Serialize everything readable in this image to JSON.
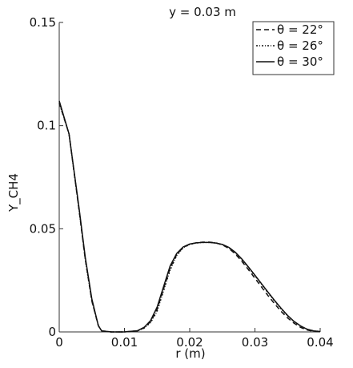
{
  "chart_data": {
    "type": "line",
    "title": "y = 0.03 m",
    "xlabel": "r (m)",
    "ylabel": "Y_CH4",
    "xlim": [
      0,
      0.04
    ],
    "ylim": [
      0,
      0.15
    ],
    "xticks": [
      "0",
      "0.01",
      "0.02",
      "0.03",
      "0.04"
    ],
    "yticks": [
      "0",
      "0.05",
      "0.1",
      "0.15"
    ],
    "grid": false,
    "legend_position": "top-right",
    "series": [
      {
        "name": "θ = 22°",
        "style": "dashed",
        "x": [
          0,
          0.0015,
          0.003,
          0.004,
          0.005,
          0.006,
          0.0065,
          0.008,
          0.01,
          0.012,
          0.013,
          0.014,
          0.015,
          0.016,
          0.017,
          0.018,
          0.019,
          0.02,
          0.021,
          0.022,
          0.023,
          0.024,
          0.025,
          0.026,
          0.027,
          0.028,
          0.029,
          0.03,
          0.031,
          0.032,
          0.033,
          0.034,
          0.035,
          0.036,
          0.037,
          0.038,
          0.039,
          0.04
        ],
        "y": [
          0.111,
          0.096,
          0.06,
          0.035,
          0.015,
          0.003,
          0.0005,
          0.0,
          0.0,
          0.0005,
          0.002,
          0.005,
          0.011,
          0.021,
          0.031,
          0.0375,
          0.041,
          0.0425,
          0.0432,
          0.0435,
          0.0435,
          0.0432,
          0.0422,
          0.0405,
          0.0378,
          0.0342,
          0.0302,
          0.026,
          0.0218,
          0.0176,
          0.0137,
          0.01,
          0.0068,
          0.0042,
          0.0022,
          0.0009,
          0.0003,
          0.0001
        ]
      },
      {
        "name": "θ = 26°",
        "style": "dash-dot",
        "x": [
          0,
          0.0015,
          0.003,
          0.004,
          0.005,
          0.006,
          0.0065,
          0.008,
          0.01,
          0.012,
          0.013,
          0.014,
          0.015,
          0.016,
          0.017,
          0.018,
          0.019,
          0.02,
          0.021,
          0.022,
          0.023,
          0.024,
          0.025,
          0.026,
          0.027,
          0.028,
          0.029,
          0.03,
          0.031,
          0.032,
          0.033,
          0.034,
          0.035,
          0.036,
          0.037,
          0.038,
          0.039,
          0.04
        ],
        "y": [
          0.111,
          0.096,
          0.06,
          0.035,
          0.015,
          0.003,
          0.0005,
          0.0,
          0.0,
          0.0005,
          0.0018,
          0.0045,
          0.01,
          0.02,
          0.03,
          0.037,
          0.0408,
          0.0424,
          0.0431,
          0.0434,
          0.0434,
          0.0431,
          0.0423,
          0.0408,
          0.0383,
          0.035,
          0.0312,
          0.0272,
          0.0231,
          0.019,
          0.015,
          0.0112,
          0.0078,
          0.005,
          0.0028,
          0.0013,
          0.0005,
          0.0002
        ]
      },
      {
        "name": "θ = 30°",
        "style": "solid",
        "x": [
          0,
          0.0015,
          0.003,
          0.004,
          0.005,
          0.006,
          0.0065,
          0.008,
          0.01,
          0.012,
          0.013,
          0.014,
          0.015,
          0.016,
          0.017,
          0.018,
          0.019,
          0.02,
          0.021,
          0.022,
          0.023,
          0.024,
          0.025,
          0.026,
          0.027,
          0.028,
          0.029,
          0.03,
          0.031,
          0.032,
          0.033,
          0.034,
          0.035,
          0.036,
          0.037,
          0.038,
          0.039,
          0.04
        ],
        "y": [
          0.112,
          0.096,
          0.061,
          0.036,
          0.016,
          0.003,
          0.0005,
          0.0,
          0.0,
          0.0006,
          0.0022,
          0.0055,
          0.012,
          0.022,
          0.032,
          0.038,
          0.0412,
          0.0426,
          0.0432,
          0.0434,
          0.0434,
          0.0431,
          0.0424,
          0.041,
          0.0386,
          0.0353,
          0.0315,
          0.0275,
          0.0234,
          0.0193,
          0.0153,
          0.0115,
          0.008,
          0.0051,
          0.0029,
          0.0013,
          0.0005,
          0.0002
        ]
      }
    ]
  }
}
